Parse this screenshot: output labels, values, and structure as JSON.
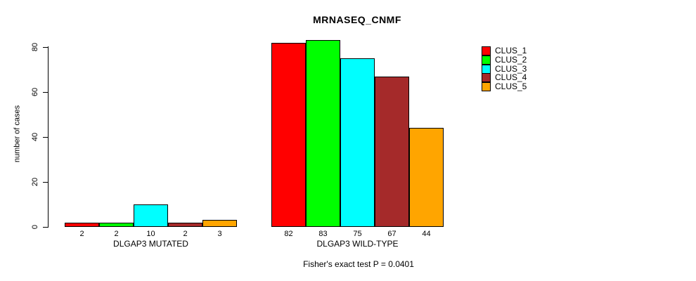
{
  "chart_data": {
    "type": "bar",
    "title": "MRNASEQ_CNMF",
    "categories": [
      "DLGAP3 MUTATED",
      "DLGAP3 WILD-TYPE"
    ],
    "series": [
      {
        "name": "CLUS_1",
        "color": "#ff0000",
        "values": [
          2,
          82
        ]
      },
      {
        "name": "CLUS_2",
        "color": "#00ff00",
        "values": [
          2,
          83
        ]
      },
      {
        "name": "CLUS_3",
        "color": "#00ffff",
        "values": [
          10,
          75
        ]
      },
      {
        "name": "CLUS_4",
        "color": "#a52a2a",
        "values": [
          2,
          67
        ]
      },
      {
        "name": "CLUS_5",
        "color": "#ffa500",
        "values": [
          3,
          44
        ]
      }
    ],
    "ylabel": "number of cases",
    "xlabel": "",
    "ylim": [
      0,
      80
    ],
    "yticks": [
      0,
      20,
      40,
      60,
      80
    ],
    "grid": false,
    "bar_value_labels": true,
    "legend_position": "right",
    "annotation": "Fisher's exact test P = 0.0401",
    "axis_color": "#000000",
    "bar_border_color": "#000000"
  }
}
